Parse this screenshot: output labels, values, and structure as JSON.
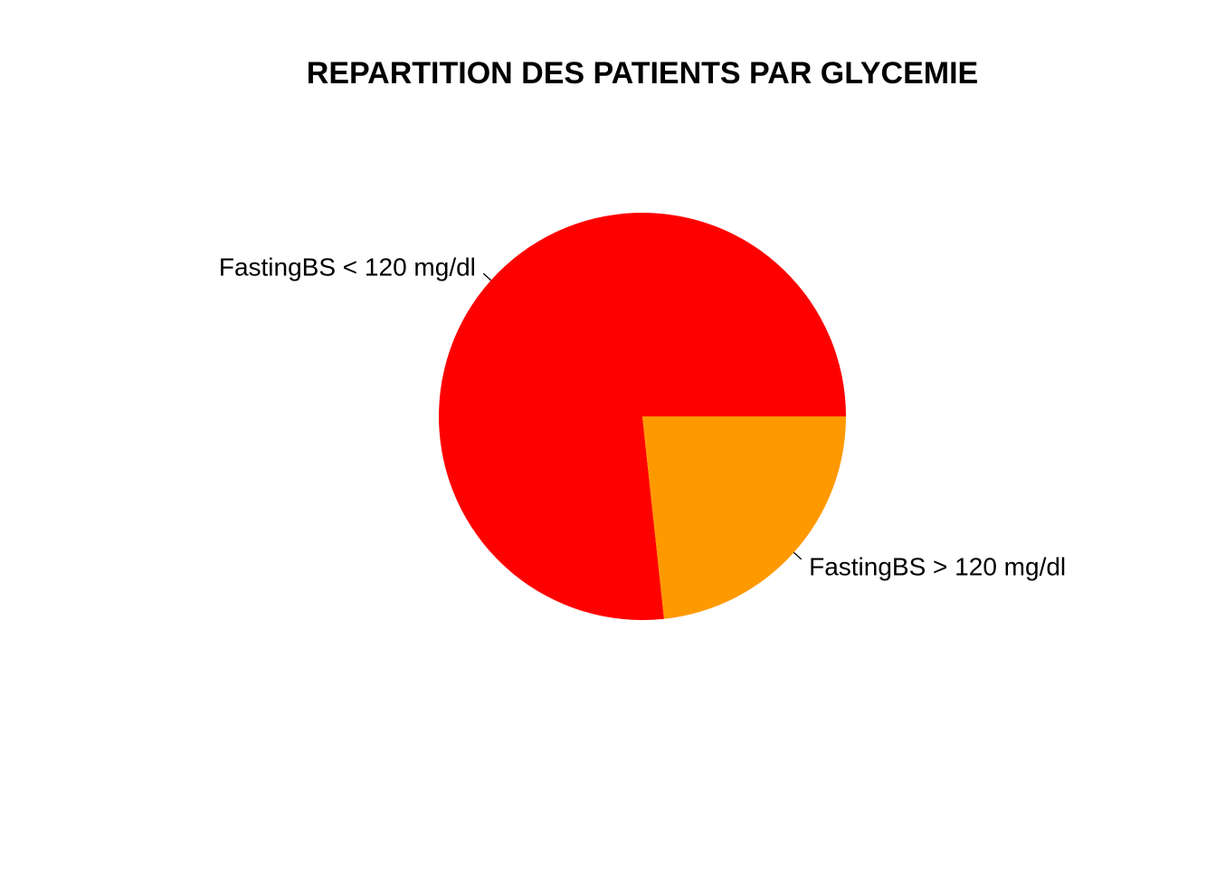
{
  "chart_data": {
    "type": "pie",
    "title": "REPARTITION DES PATIENTS PAR GLYCEMIE",
    "categories": [
      "FastingBS < 120 mg/dl",
      "FastingBS > 120 mg/dl"
    ],
    "values": [
      76.7,
      23.3
    ],
    "colors": [
      "#ff0000",
      "#ff9900"
    ],
    "start": "3 o'clock",
    "direction": "counterclockwise",
    "legend": "none",
    "grid": false
  }
}
